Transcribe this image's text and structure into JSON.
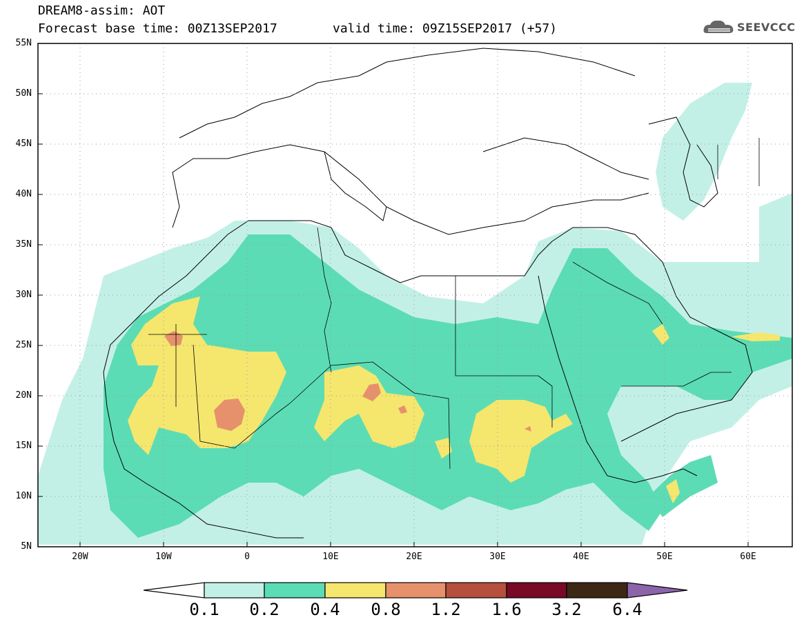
{
  "header": {
    "title": "DREAM8-assim: AOT",
    "base_time": "Forecast base time: 00Z13SEP2017",
    "valid_time": "valid time: 09Z15SEP2017 (+57)",
    "logo_text": "SEEVCCC"
  },
  "axes": {
    "lon_labels": [
      "20W",
      "10W",
      "0",
      "10E",
      "20E",
      "30E",
      "40E",
      "50E",
      "60E"
    ],
    "lat_labels": [
      "55N",
      "50N",
      "45N",
      "40N",
      "35N",
      "30N",
      "25N",
      "20N",
      "15N",
      "10N",
      "5N"
    ],
    "lon_range": [
      -25,
      65
    ],
    "lat_range": [
      5,
      55
    ]
  },
  "colorbar": {
    "levels": [
      "0.1",
      "0.2",
      "0.4",
      "0.8",
      "1.2",
      "1.6",
      "3.2",
      "6.4"
    ],
    "colors": [
      "#ffffff",
      "#c3f0e6",
      "#5cdcb4",
      "#f5e66e",
      "#e6916c",
      "#b4503c",
      "#780a28",
      "#3c2814",
      "#8c64aa"
    ]
  },
  "colors": {
    "c01": "#c3f0e6",
    "c02": "#5cdcb4",
    "c04": "#f5e66e",
    "c08": "#e6916c"
  }
}
